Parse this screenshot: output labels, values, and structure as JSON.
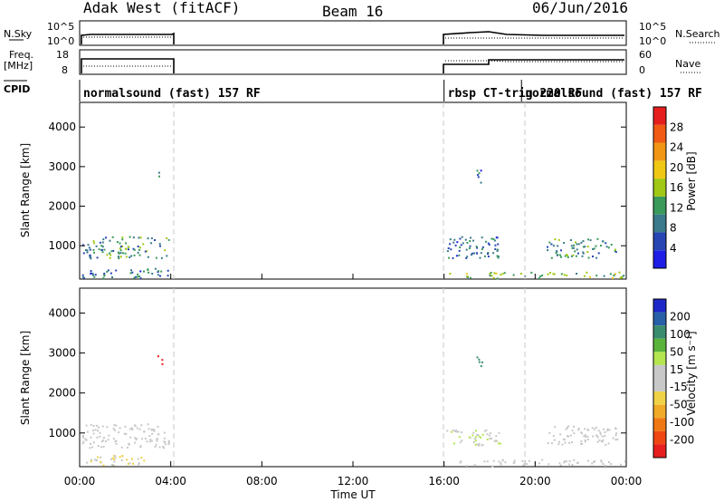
{
  "header": {
    "station": "Adak West (fitACF)",
    "beam": "Beam 16",
    "date": "06/Jun/2016"
  },
  "panels": {
    "nsky_label": "N.Sky",
    "nsky_ticks": [
      "10^5",
      "10^0"
    ],
    "nsearch_label": "N.Search",
    "nsearch_ticks": [
      "10^5",
      "10^0"
    ],
    "freq_label_1": "Freq.",
    "freq_label_2": "[MHz]",
    "freq_ticks": [
      "18",
      "8"
    ],
    "nave_label": "Nave",
    "nave_ticks": [
      "60",
      "0"
    ],
    "cpid_label": "CPID"
  },
  "cpid_segments": [
    {
      "start": 0.0,
      "end": 4.05,
      "text": "normalsound (fast) 157 RF"
    },
    {
      "start": 16.0,
      "end": 19.4,
      "text": "rbsp CT-trig 220 RF"
    },
    {
      "start": 19.4,
      "end": 24.0,
      "text": "normalsound (fast) 157 RF"
    }
  ],
  "x_ticks": [
    "00:00",
    "04:00",
    "08:00",
    "12:00",
    "16:00",
    "20:00",
    "00:00"
  ],
  "x_label": "Time UT",
  "y_label": "Slant Range [km]",
  "y_ticks": [
    "1000",
    "2000",
    "3000",
    "4000"
  ],
  "power_colorbar": {
    "label": "Power [dB]",
    "ticks": [
      "4",
      "8",
      "12",
      "16",
      "20",
      "24",
      "28"
    ],
    "colors": [
      "#1e1ee6",
      "#2845b4",
      "#3a7a8c",
      "#3a9a5a",
      "#a0c814",
      "#f0c814",
      "#f09614",
      "#f05a14",
      "#e61e1e"
    ]
  },
  "velocity_colorbar": {
    "label": "Velocity [m s⁻¹]",
    "ticks": [
      "200",
      "100",
      "50",
      "15",
      "-15",
      "-50",
      "-100",
      "-200"
    ],
    "colors": [
      "#1e28c8",
      "#2860a8",
      "#3a8c6e",
      "#5ab43c",
      "#b4e650",
      "#c8c8c8",
      "#c8c8c8",
      "#f0d246",
      "#f0aa28",
      "#f07814",
      "#f04614",
      "#e61e1e"
    ]
  },
  "chart_data": [
    {
      "type": "heatmap",
      "title": "Power",
      "xlabel": "Time UT",
      "ylabel": "Slant Range [km]",
      "xlim": [
        0,
        24
      ],
      "ylim": [
        180,
        4600
      ],
      "colorbar_label": "Power [dB]",
      "colorbar_range": [
        0,
        30
      ],
      "scatter_regions": [
        {
          "t0": 0.1,
          "t1": 3.9,
          "r0": 700,
          "r1": 1250,
          "value": 10
        },
        {
          "t0": 0.1,
          "t1": 3.9,
          "r0": 200,
          "r1": 450,
          "value": 8
        },
        {
          "t0": 3.4,
          "t1": 3.6,
          "r0": 2750,
          "r1": 2950,
          "value": 14
        },
        {
          "t0": 16.1,
          "t1": 18.5,
          "r0": 700,
          "r1": 1250,
          "value": 8
        },
        {
          "t0": 16.1,
          "t1": 24.0,
          "r0": 190,
          "r1": 350,
          "value": 14
        },
        {
          "t0": 20.5,
          "t1": 23.6,
          "r0": 700,
          "r1": 1200,
          "value": 10
        },
        {
          "t0": 17.4,
          "t1": 17.7,
          "r0": 2600,
          "r1": 2950,
          "value": 8
        }
      ]
    },
    {
      "type": "heatmap",
      "title": "Velocity",
      "xlabel": "Time UT",
      "ylabel": "Slant Range [km]",
      "xlim": [
        0,
        24
      ],
      "ylim": [
        180,
        4600
      ],
      "colorbar_label": "Velocity [m s⁻¹]",
      "colorbar_range": [
        -250,
        250
      ],
      "scatter_regions": [
        {
          "t0": 0.1,
          "t1": 3.9,
          "r0": 650,
          "r1": 1250,
          "value": 0
        },
        {
          "t0": 0.1,
          "t1": 2.8,
          "r0": 200,
          "r1": 450,
          "value": -40
        },
        {
          "t0": 3.4,
          "t1": 3.6,
          "r0": 2700,
          "r1": 2950,
          "value": -220
        },
        {
          "t0": 16.1,
          "t1": 18.5,
          "r0": 700,
          "r1": 1100,
          "value": 40
        },
        {
          "t0": 16.1,
          "t1": 24.0,
          "r0": 190,
          "r1": 350,
          "value": 0
        },
        {
          "t0": 20.5,
          "t1": 23.6,
          "r0": 700,
          "r1": 1200,
          "value": 0
        },
        {
          "t0": 17.4,
          "t1": 17.7,
          "r0": 2600,
          "r1": 2950,
          "value": 150
        }
      ]
    }
  ]
}
